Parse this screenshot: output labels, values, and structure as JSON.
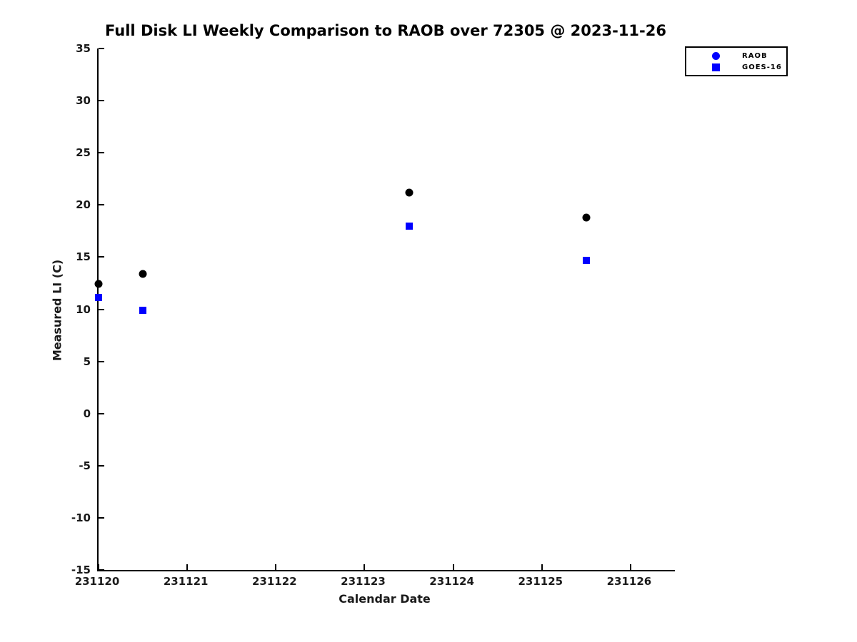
{
  "colors": {
    "background": "#ffffff",
    "axis": "#000000",
    "text": "#1a1a1a",
    "raob_marker": "#000000",
    "goes16_marker": "#0000ff",
    "legend_marker": "#0000ff"
  },
  "chart_data": {
    "type": "scatter",
    "title": "Full Disk LI Weekly Comparison to RAOB over 72305 @ 2023-11-26",
    "xlabel": "Calendar Date",
    "ylabel": "Measured LI (C)",
    "xlim": [
      231120,
      231126.5
    ],
    "ylim": [
      -15,
      35
    ],
    "xticks": [
      231120,
      231121,
      231122,
      231123,
      231124,
      231125,
      231126
    ],
    "yticks": [
      35,
      30,
      25,
      20,
      15,
      10,
      5,
      0,
      -5,
      -10,
      -15
    ],
    "grid": false,
    "legend_position": "top-right-outside",
    "series": [
      {
        "name": "RAOB",
        "marker": "circle",
        "marker_color": "#000000",
        "legend_marker_color": "#0000ff",
        "marker_size": 11,
        "points": [
          {
            "x": 231120.0,
            "y": 12.4
          },
          {
            "x": 231120.5,
            "y": 13.4
          },
          {
            "x": 231123.5,
            "y": 21.2
          },
          {
            "x": 231125.5,
            "y": 18.8
          }
        ]
      },
      {
        "name": "GOES-16",
        "marker": "square",
        "marker_color": "#0000ff",
        "legend_marker_color": "#0000ff",
        "marker_size": 10,
        "points": [
          {
            "x": 231120.0,
            "y": 11.1
          },
          {
            "x": 231120.5,
            "y": 9.9
          },
          {
            "x": 231123.5,
            "y": 18.0
          },
          {
            "x": 231125.5,
            "y": 14.7
          }
        ]
      }
    ]
  }
}
